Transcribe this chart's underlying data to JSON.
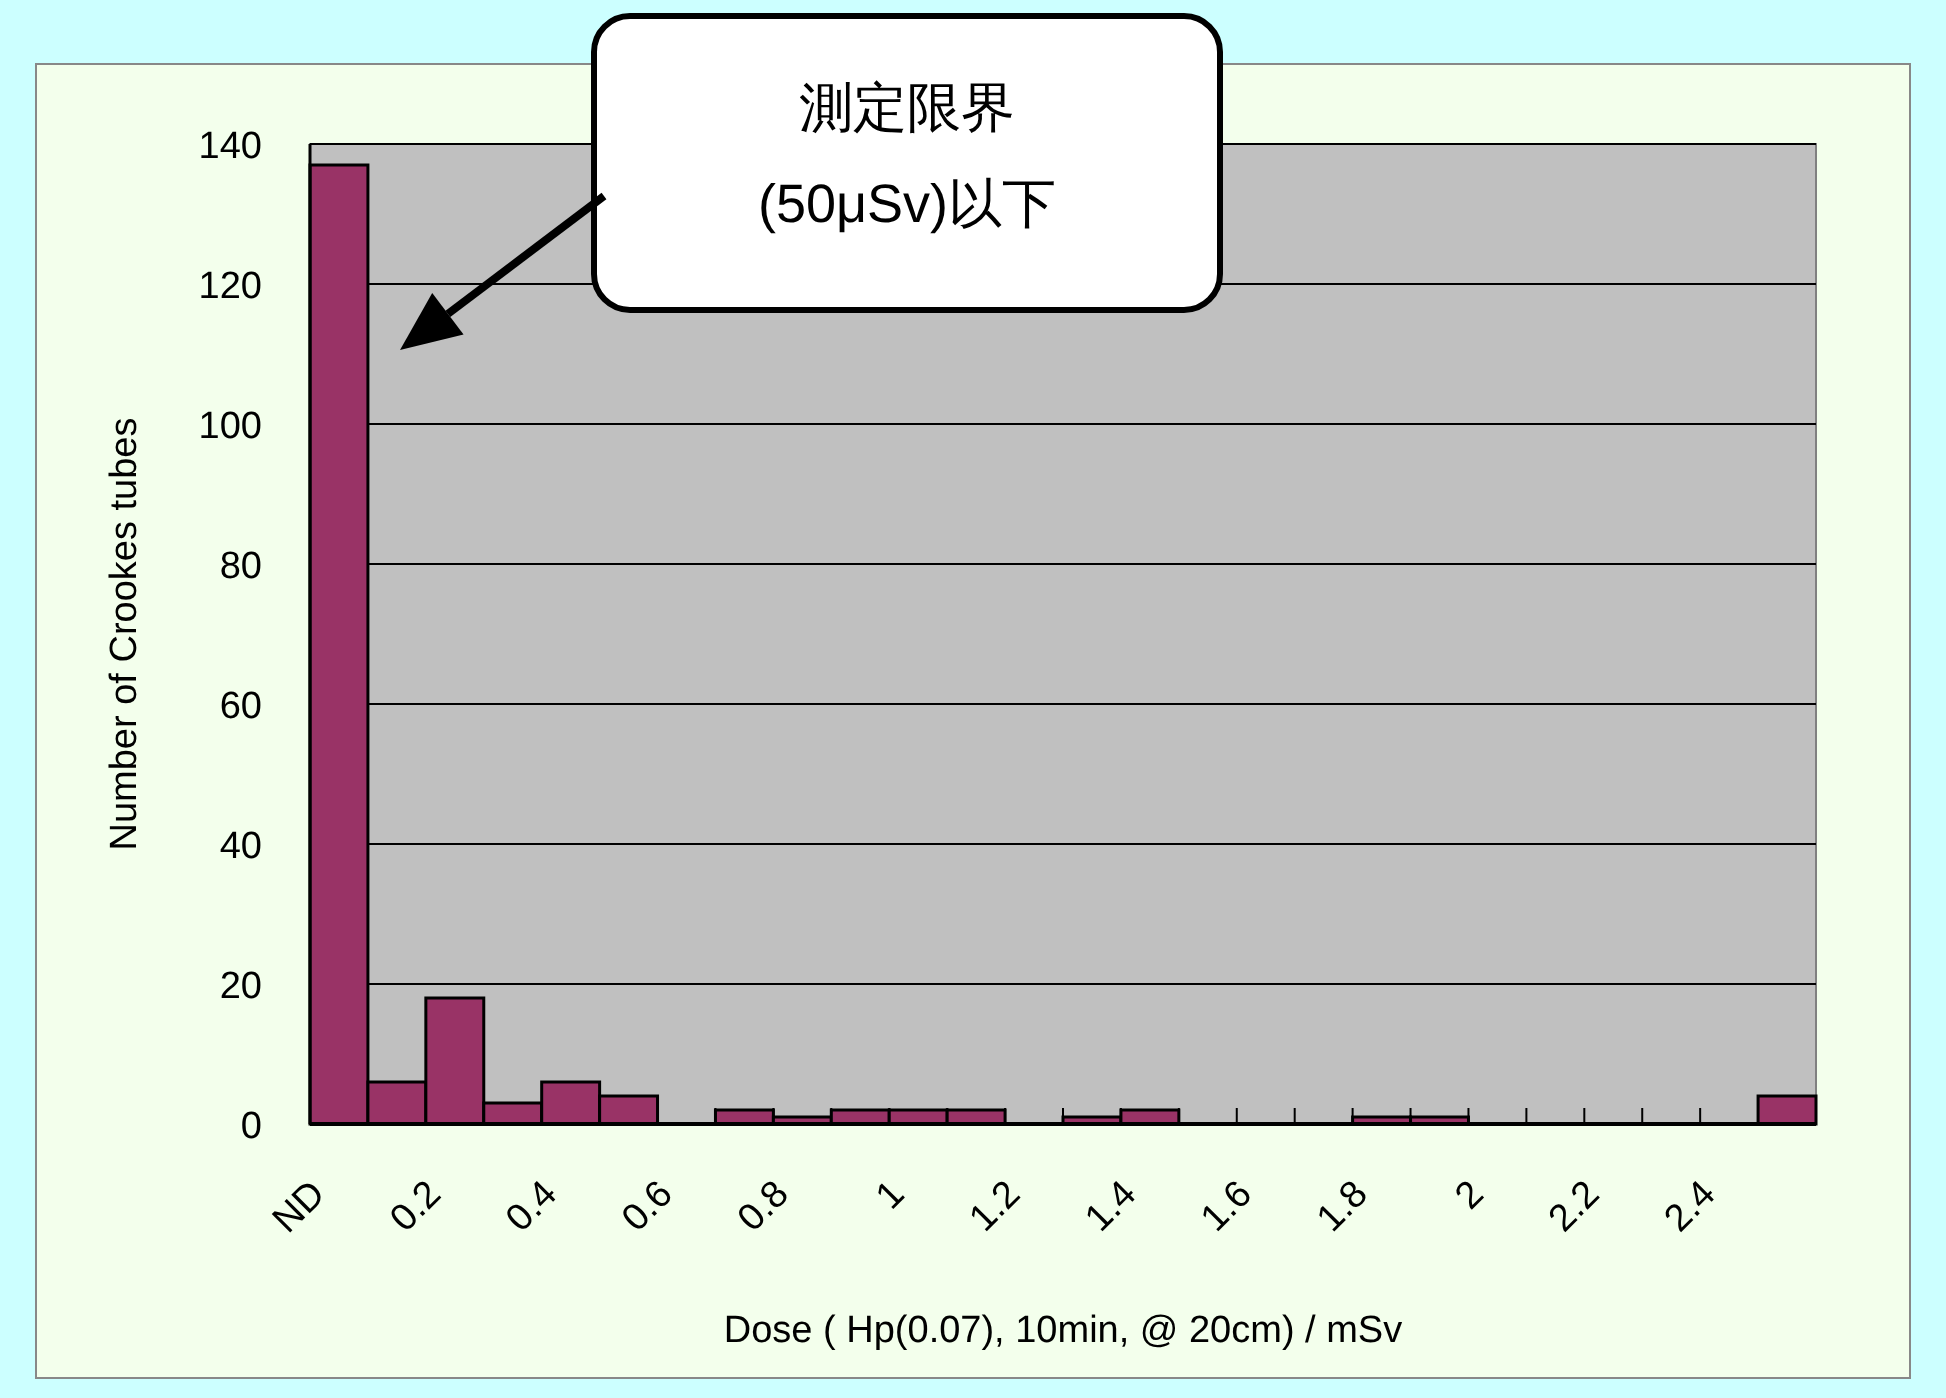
{
  "chart_data": {
    "type": "bar",
    "xlabel": "Dose ( Hp(0.07), 10min, @ 20cm) / mSv",
    "ylabel": "Number of Crookes tubes",
    "categories": [
      "ND",
      null,
      "0.2",
      null,
      "0.4",
      null,
      "0.6",
      null,
      "0.8",
      null,
      "1",
      null,
      "1.2",
      null,
      "1.4",
      null,
      "1.6",
      null,
      "1.8",
      null,
      "2",
      null,
      "2.2",
      null,
      "2.4",
      null
    ],
    "values": [
      137,
      6,
      18,
      3,
      6,
      4,
      0,
      2,
      1,
      2,
      2,
      2,
      0,
      1,
      2,
      0,
      0,
      0,
      1,
      1,
      0,
      0,
      0,
      0,
      0,
      4
    ],
    "color": "#993366",
    "ylim": [
      0,
      140
    ],
    "yticks": [
      0,
      20,
      40,
      60,
      80,
      100,
      120,
      140
    ],
    "grid": "y",
    "annotations": [
      "測定限界\n(50μSv)以下"
    ]
  }
}
